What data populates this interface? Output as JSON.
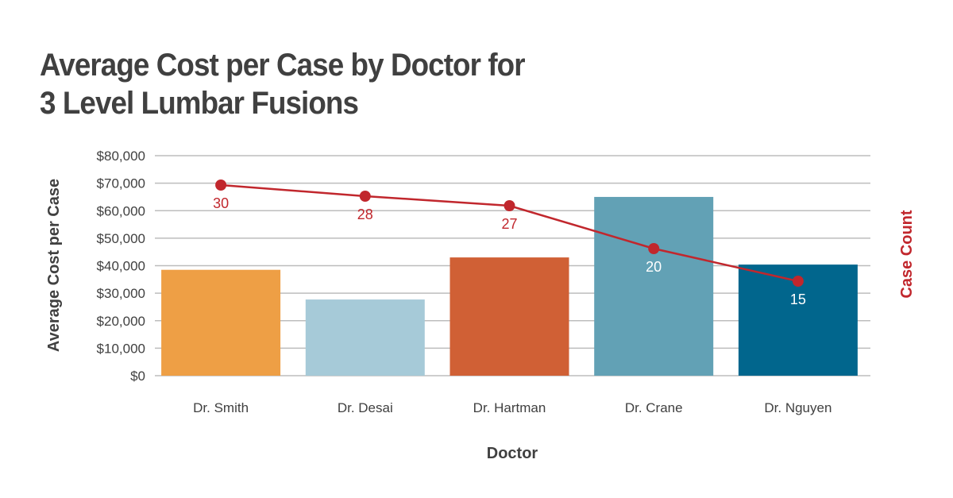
{
  "title": {
    "line1": "Average Cost per Case by Doctor for",
    "line2": "3 Level Lumbar Fusions"
  },
  "chart_data": {
    "type": "bar",
    "title": "Average Cost per Case by Doctor for 3 Level Lumbar Fusions",
    "xlabel": "Doctor",
    "ylabel": "Average Cost per Case",
    "y2label": "Case Count",
    "ylim": [
      0,
      80000
    ],
    "yticks": [
      "$0",
      "$10,000",
      "$20,000",
      "$30,000",
      "$40,000",
      "$50,000",
      "$60,000",
      "$70,000",
      "$80,000"
    ],
    "grid": true,
    "categories": [
      "Dr. Smith",
      "Dr. Desai",
      "Dr. Hartman",
      "Dr. Crane",
      "Dr. Nguyen"
    ],
    "series": [
      {
        "name": "Average Cost per Case",
        "type": "bar",
        "values": [
          38500,
          27700,
          43000,
          65000,
          40400
        ],
        "colors": [
          "#EE9F45",
          "#A6CAD8",
          "#D06035",
          "#62A1B5",
          "#01668D"
        ]
      },
      {
        "name": "Case Count",
        "type": "line",
        "axis": "secondary",
        "values": [
          30,
          28,
          27,
          20,
          15
        ],
        "labels": [
          "30",
          "28",
          "27",
          "20",
          "15"
        ],
        "color": "#C1272D"
      }
    ]
  }
}
